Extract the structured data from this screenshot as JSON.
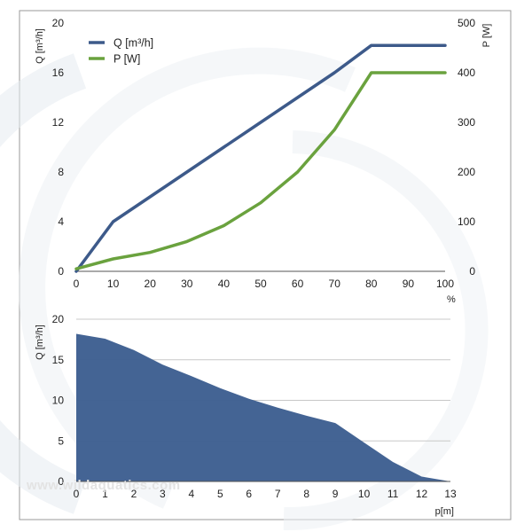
{
  "watermark": "www.wildaquatics.com",
  "colors": {
    "Q": "#3d5a8a",
    "P": "#6aa23e",
    "area": "#3e5f91",
    "grid": "#c8c8c8"
  },
  "chart_data": [
    {
      "type": "line",
      "title": "",
      "xlabel": "%",
      "ylabel": "Q [m³/h]",
      "y2label": "P [W]",
      "xlim": [
        0,
        100
      ],
      "ylim": [
        0,
        20
      ],
      "y2lim": [
        0,
        500
      ],
      "x_ticks": [
        0,
        10,
        20,
        30,
        40,
        50,
        60,
        70,
        80,
        90,
        100
      ],
      "y_ticks": [
        0,
        4,
        8,
        12,
        16,
        20
      ],
      "y2_ticks": [
        0,
        100,
        200,
        300,
        400,
        500
      ],
      "grid": false,
      "legend": "top-left",
      "series": [
        {
          "name": "Q [m³/h]",
          "axis": "left",
          "color": "#3d5a8a",
          "x": [
            0,
            10,
            20,
            30,
            40,
            50,
            60,
            70,
            80,
            100
          ],
          "y": [
            0,
            4,
            6,
            8,
            10,
            12,
            14,
            16,
            18.2,
            18.2
          ]
        },
        {
          "name": "P [W]",
          "axis": "right",
          "color": "#6aa23e",
          "x": [
            0,
            10,
            20,
            30,
            40,
            50,
            60,
            70,
            80,
            100
          ],
          "y": [
            5,
            25,
            38,
            60,
            92,
            138,
            200,
            285,
            400,
            400
          ]
        }
      ]
    },
    {
      "type": "area",
      "title": "",
      "xlabel": "p[m]",
      "ylabel": "Q [m³/h]",
      "xlim": [
        0,
        13
      ],
      "ylim": [
        0,
        20
      ],
      "x_ticks": [
        0,
        1,
        2,
        3,
        4,
        5,
        6,
        7,
        8,
        9,
        10,
        11,
        12,
        13
      ],
      "y_ticks": [
        0,
        5,
        10,
        15,
        20
      ],
      "grid": true,
      "series": [
        {
          "color": "#3e5f91",
          "x": [
            0,
            1,
            2,
            3,
            4,
            5,
            6,
            7,
            8,
            9,
            10,
            11,
            12,
            13
          ],
          "y": [
            18.2,
            17.6,
            16.2,
            14.4,
            13,
            11.5,
            10.2,
            9.1,
            8.1,
            7.2,
            4.8,
            2.4,
            0.6,
            0
          ]
        }
      ]
    }
  ]
}
